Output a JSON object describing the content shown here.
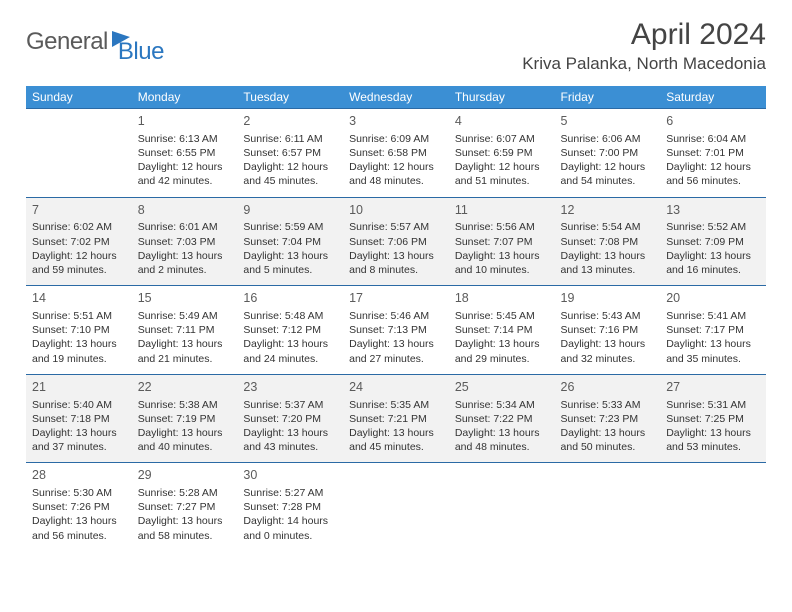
{
  "logo": {
    "part1": "General",
    "part2": "Blue"
  },
  "title": "April 2024",
  "location": "Kriva Palanka, North Macedonia",
  "colors": {
    "header_bg": "#3b8fd4",
    "header_text": "#ffffff",
    "row_border": "#2b6aa5",
    "shaded_bg": "#f2f2f2",
    "text": "#333333",
    "logo_grey": "#5a5a5a",
    "logo_blue": "#2b77c0"
  },
  "weekdays": [
    "Sunday",
    "Monday",
    "Tuesday",
    "Wednesday",
    "Thursday",
    "Friday",
    "Saturday"
  ],
  "weeks": [
    {
      "shaded": false,
      "days": [
        null,
        {
          "n": "1",
          "sunrise": "6:13 AM",
          "sunset": "6:55 PM",
          "daylight": "12 hours and 42 minutes."
        },
        {
          "n": "2",
          "sunrise": "6:11 AM",
          "sunset": "6:57 PM",
          "daylight": "12 hours and 45 minutes."
        },
        {
          "n": "3",
          "sunrise": "6:09 AM",
          "sunset": "6:58 PM",
          "daylight": "12 hours and 48 minutes."
        },
        {
          "n": "4",
          "sunrise": "6:07 AM",
          "sunset": "6:59 PM",
          "daylight": "12 hours and 51 minutes."
        },
        {
          "n": "5",
          "sunrise": "6:06 AM",
          "sunset": "7:00 PM",
          "daylight": "12 hours and 54 minutes."
        },
        {
          "n": "6",
          "sunrise": "6:04 AM",
          "sunset": "7:01 PM",
          "daylight": "12 hours and 56 minutes."
        }
      ]
    },
    {
      "shaded": true,
      "days": [
        {
          "n": "7",
          "sunrise": "6:02 AM",
          "sunset": "7:02 PM",
          "daylight": "12 hours and 59 minutes."
        },
        {
          "n": "8",
          "sunrise": "6:01 AM",
          "sunset": "7:03 PM",
          "daylight": "13 hours and 2 minutes."
        },
        {
          "n": "9",
          "sunrise": "5:59 AM",
          "sunset": "7:04 PM",
          "daylight": "13 hours and 5 minutes."
        },
        {
          "n": "10",
          "sunrise": "5:57 AM",
          "sunset": "7:06 PM",
          "daylight": "13 hours and 8 minutes."
        },
        {
          "n": "11",
          "sunrise": "5:56 AM",
          "sunset": "7:07 PM",
          "daylight": "13 hours and 10 minutes."
        },
        {
          "n": "12",
          "sunrise": "5:54 AM",
          "sunset": "7:08 PM",
          "daylight": "13 hours and 13 minutes."
        },
        {
          "n": "13",
          "sunrise": "5:52 AM",
          "sunset": "7:09 PM",
          "daylight": "13 hours and 16 minutes."
        }
      ]
    },
    {
      "shaded": false,
      "days": [
        {
          "n": "14",
          "sunrise": "5:51 AM",
          "sunset": "7:10 PM",
          "daylight": "13 hours and 19 minutes."
        },
        {
          "n": "15",
          "sunrise": "5:49 AM",
          "sunset": "7:11 PM",
          "daylight": "13 hours and 21 minutes."
        },
        {
          "n": "16",
          "sunrise": "5:48 AM",
          "sunset": "7:12 PM",
          "daylight": "13 hours and 24 minutes."
        },
        {
          "n": "17",
          "sunrise": "5:46 AM",
          "sunset": "7:13 PM",
          "daylight": "13 hours and 27 minutes."
        },
        {
          "n": "18",
          "sunrise": "5:45 AM",
          "sunset": "7:14 PM",
          "daylight": "13 hours and 29 minutes."
        },
        {
          "n": "19",
          "sunrise": "5:43 AM",
          "sunset": "7:16 PM",
          "daylight": "13 hours and 32 minutes."
        },
        {
          "n": "20",
          "sunrise": "5:41 AM",
          "sunset": "7:17 PM",
          "daylight": "13 hours and 35 minutes."
        }
      ]
    },
    {
      "shaded": true,
      "days": [
        {
          "n": "21",
          "sunrise": "5:40 AM",
          "sunset": "7:18 PM",
          "daylight": "13 hours and 37 minutes."
        },
        {
          "n": "22",
          "sunrise": "5:38 AM",
          "sunset": "7:19 PM",
          "daylight": "13 hours and 40 minutes."
        },
        {
          "n": "23",
          "sunrise": "5:37 AM",
          "sunset": "7:20 PM",
          "daylight": "13 hours and 43 minutes."
        },
        {
          "n": "24",
          "sunrise": "5:35 AM",
          "sunset": "7:21 PM",
          "daylight": "13 hours and 45 minutes."
        },
        {
          "n": "25",
          "sunrise": "5:34 AM",
          "sunset": "7:22 PM",
          "daylight": "13 hours and 48 minutes."
        },
        {
          "n": "26",
          "sunrise": "5:33 AM",
          "sunset": "7:23 PM",
          "daylight": "13 hours and 50 minutes."
        },
        {
          "n": "27",
          "sunrise": "5:31 AM",
          "sunset": "7:25 PM",
          "daylight": "13 hours and 53 minutes."
        }
      ]
    },
    {
      "shaded": false,
      "days": [
        {
          "n": "28",
          "sunrise": "5:30 AM",
          "sunset": "7:26 PM",
          "daylight": "13 hours and 56 minutes."
        },
        {
          "n": "29",
          "sunrise": "5:28 AM",
          "sunset": "7:27 PM",
          "daylight": "13 hours and 58 minutes."
        },
        {
          "n": "30",
          "sunrise": "5:27 AM",
          "sunset": "7:28 PM",
          "daylight": "14 hours and 0 minutes."
        },
        null,
        null,
        null,
        null
      ]
    }
  ],
  "labels": {
    "sunrise": "Sunrise:",
    "sunset": "Sunset:",
    "daylight": "Daylight:"
  }
}
